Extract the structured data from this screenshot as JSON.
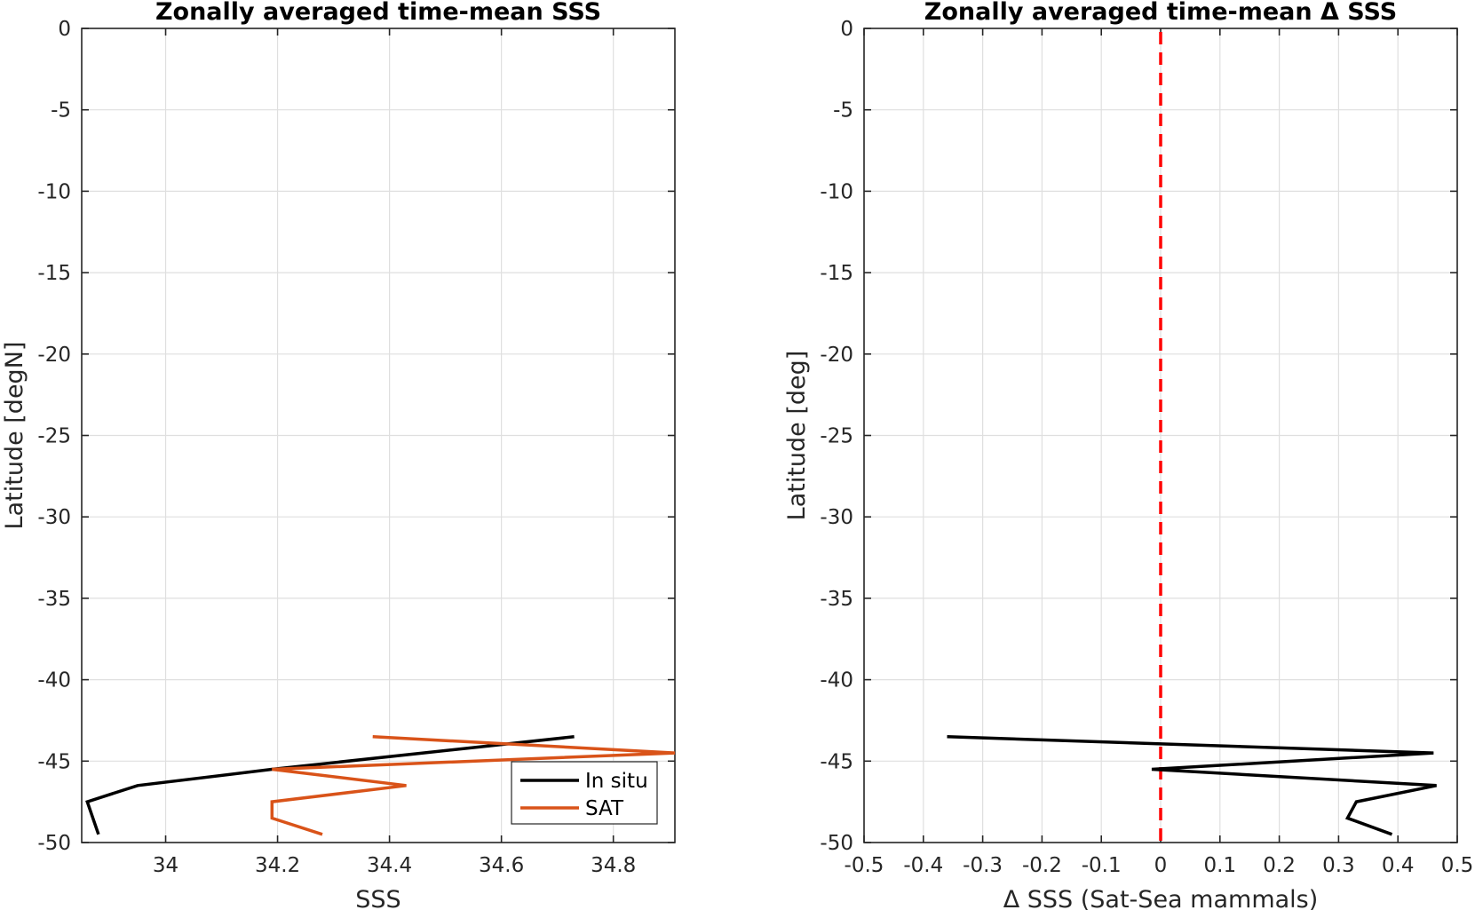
{
  "colors": {
    "in_situ": "#000000",
    "sat": "#D95319",
    "zero_line": "#FF0000",
    "grid": "#DFDFDF",
    "axis": "#262626"
  },
  "chart_data": [
    {
      "type": "line",
      "title": "Zonally averaged time-mean SSS",
      "xlabel": "SSS",
      "ylabel": "Latitude [degN]",
      "xlim": [
        33.85,
        34.91
      ],
      "ylim": [
        -50,
        0
      ],
      "xticks": [
        34,
        34.2,
        34.4,
        34.6,
        34.8
      ],
      "xtick_labels": [
        "34",
        "34.2",
        "34.4",
        "34.6",
        "34.8"
      ],
      "yticks": [
        0,
        -5,
        -10,
        -15,
        -20,
        -25,
        -30,
        -35,
        -40,
        -45,
        -50
      ],
      "ytick_labels": [
        "0",
        "-5",
        "-10",
        "-15",
        "-20",
        "-25",
        "-30",
        "-35",
        "-40",
        "-45",
        "-50"
      ],
      "grid": true,
      "legend_position": "bottom-right",
      "series": [
        {
          "name": "In situ",
          "color": "in_situ",
          "x": [
            34.73,
            34.19,
            33.95,
            33.86,
            33.88
          ],
          "y": [
            -43.5,
            -45.5,
            -46.5,
            -47.5,
            -49.5
          ]
        },
        {
          "name": "SAT",
          "color": "sat",
          "x": [
            34.37,
            34.91,
            34.19,
            34.43,
            34.19,
            34.19,
            34.28
          ],
          "y": [
            -43.5,
            -44.5,
            -45.5,
            -46.5,
            -47.5,
            -48.5,
            -49.5
          ]
        }
      ]
    },
    {
      "type": "line",
      "title": "Zonally averaged time-mean Δ SSS",
      "xlabel": "Δ SSS (Sat-Sea mammals)",
      "ylabel": "Latitude [deg]",
      "xlim": [
        -0.5,
        0.5
      ],
      "ylim": [
        -50,
        0
      ],
      "xticks": [
        -0.5,
        -0.4,
        -0.3,
        -0.2,
        -0.1,
        0,
        0.1,
        0.2,
        0.3,
        0.4,
        0.5
      ],
      "xtick_labels": [
        "-0.5",
        "-0.4",
        "-0.3",
        "-0.2",
        "-0.1",
        "0",
        "0.1",
        "0.2",
        "0.3",
        "0.4",
        "0.5"
      ],
      "yticks": [
        0,
        -5,
        -10,
        -15,
        -20,
        -25,
        -30,
        -35,
        -40,
        -45,
        -50
      ],
      "ytick_labels": [
        "0",
        "-5",
        "-10",
        "-15",
        "-20",
        "-25",
        "-30",
        "-35",
        "-40",
        "-45",
        "-50"
      ],
      "grid": true,
      "reference_line": {
        "x": 0,
        "style": "dashed",
        "color": "zero_line"
      },
      "series": [
        {
          "color": "in_situ",
          "x": [
            -0.36,
            0.46,
            -0.015,
            0.465,
            0.33,
            0.315,
            0.39
          ],
          "y": [
            -43.5,
            -44.5,
            -45.5,
            -46.5,
            -47.5,
            -48.5,
            -49.5
          ]
        }
      ]
    }
  ]
}
